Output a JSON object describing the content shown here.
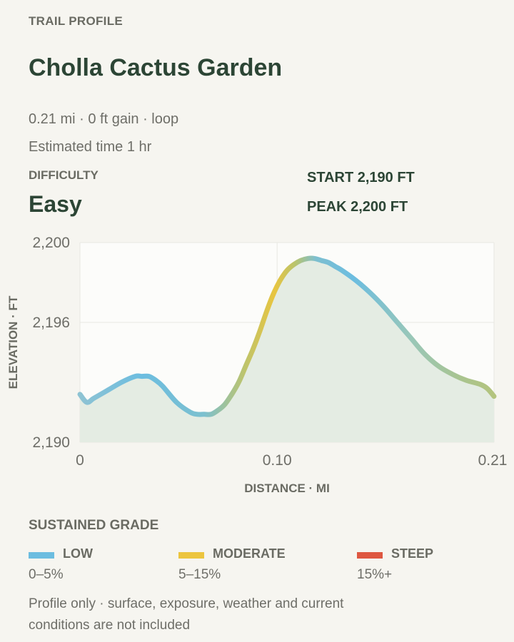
{
  "header": {
    "eyebrow": "TRAIL PROFILE",
    "title": "Cholla Cactus Garden",
    "summary": "0.21 mi · 0 ft gain · loop",
    "estimate": "Estimated time 1 hr"
  },
  "difficulty": {
    "label": "DIFFICULTY",
    "value": "Easy"
  },
  "stats": {
    "start": "START 2,190 FT",
    "peak": "PEAK 2,200 FT"
  },
  "chart_data": {
    "type": "area",
    "title": "",
    "xlabel": "DISTANCE · MI",
    "ylabel": "ELEVATION · FT",
    "xlim": [
      0,
      0.21
    ],
    "ylim": [
      2190,
      2200
    ],
    "x_ticks": [
      {
        "value": 0,
        "label": "0"
      },
      {
        "value": 0.1,
        "label": "0.10"
      },
      {
        "value": 0.21,
        "label": "0.21"
      }
    ],
    "y_ticks": [
      {
        "value": 2200,
        "label": "2,200"
      },
      {
        "value": 2196,
        "label": "2,196"
      },
      {
        "value": 2190,
        "label": "2,190"
      }
    ],
    "grid": true,
    "series": [
      {
        "x": [
          0,
          0.0035,
          0.007,
          0.014,
          0.021,
          0.028,
          0.0315,
          0.035,
          0.0385,
          0.042,
          0.049,
          0.056,
          0.0595,
          0.063,
          0.0665,
          0.07,
          0.0735,
          0.077,
          0.0805,
          0.084,
          0.0875,
          0.091,
          0.0945,
          0.098,
          0.1015,
          0.105,
          0.1085,
          0.112,
          0.1155,
          0.119,
          0.1225,
          0.126,
          0.1295,
          0.133,
          0.14,
          0.147,
          0.154,
          0.161,
          0.168,
          0.175,
          0.182,
          0.189,
          0.196,
          0.203,
          0.2065,
          0.21
        ],
        "y": [
          2192.4,
          2192,
          2192.2,
          2192.6,
          2193,
          2193.3,
          2193.3,
          2193.3,
          2193.1,
          2192.8,
          2192,
          2191.5,
          2191.4,
          2191.4,
          2191.4,
          2191.6,
          2191.9,
          2192.4,
          2193,
          2193.8,
          2194.6,
          2195.5,
          2196.5,
          2197.4,
          2198.1,
          2198.6,
          2198.9,
          2199.1,
          2199.2,
          2199.2,
          2199.1,
          2199,
          2198.8,
          2198.6,
          2198.1,
          2197.5,
          2196.8,
          2196,
          2195.2,
          2194.4,
          2193.8,
          2193.4,
          2193.1,
          2192.9,
          2192.7,
          2192.3
        ]
      }
    ]
  },
  "grade": {
    "title": "SUSTAINED GRADE",
    "items": [
      {
        "name": "LOW",
        "range": "0–5%",
        "color": "#6cbde0"
      },
      {
        "name": "MODERATE",
        "range": "5–15%",
        "color": "#ecc53f"
      },
      {
        "name": "STEEP",
        "range": "15%+",
        "color": "#de5741"
      }
    ]
  },
  "note": "Profile only · surface, exposure, weather and current conditions are not included"
}
